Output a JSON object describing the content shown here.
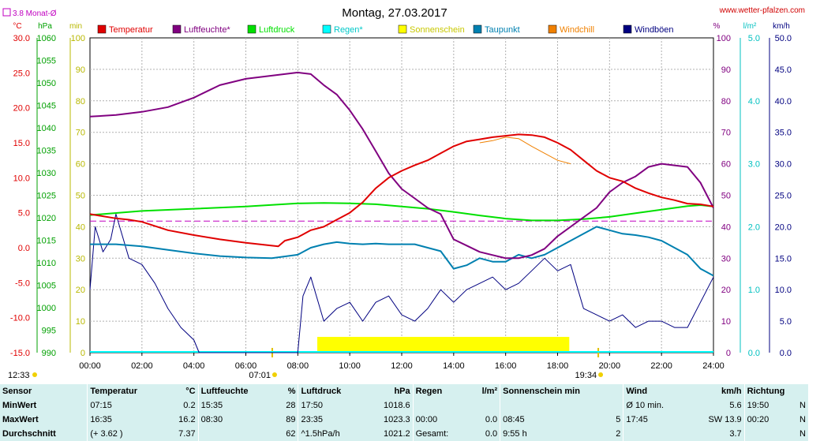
{
  "chart_data": {
    "type": "line",
    "title": "Montag, 27.03.2017",
    "source": "www.wetter-pfalzen.com",
    "monthly_avg_label": "3.8 Monat-Ø",
    "monthly_avg_value": 3.8,
    "axes": {
      "temp": {
        "unit": "°C",
        "min": -15,
        "max": 30,
        "ticks": [
          "30.0",
          "25.0",
          "20.0",
          "15.0",
          "10.0",
          "5.0",
          "0.0",
          "-5.0",
          "-10.0",
          "-15.0"
        ],
        "color": "#e00000"
      },
      "pressure": {
        "unit": "hPa",
        "min": 990,
        "max": 1060,
        "ticks": [
          "1060",
          "1055",
          "1050",
          "1045",
          "1040",
          "1035",
          "1030",
          "1025",
          "1020",
          "1015",
          "1010",
          "1005",
          "1000",
          "995",
          "990"
        ],
        "color": "#00a000"
      },
      "minutes": {
        "unit": "min",
        "min": 0,
        "max": 100,
        "ticks": [
          "100",
          "90",
          "80",
          "70",
          "60",
          "50",
          "40",
          "30",
          "20",
          "10",
          "0"
        ],
        "color": "#b8b800"
      },
      "humidity": {
        "unit": "%",
        "min": 0,
        "max": 100,
        "ticks": [
          "100",
          "90",
          "80",
          "70",
          "60",
          "50",
          "40",
          "30",
          "20",
          "10",
          "0"
        ],
        "color": "#800080"
      },
      "rain": {
        "unit": "l/m²",
        "min": 0,
        "max": 5,
        "ticks": [
          "5.0",
          "4.0",
          "3.0",
          "2.0",
          "1.0",
          "0.0"
        ],
        "color": "#00c0c0"
      },
      "wind": {
        "unit": "km/h",
        "min": 0,
        "max": 50,
        "ticks": [
          "50.0",
          "45.0",
          "40.0",
          "35.0",
          "30.0",
          "25.0",
          "20.0",
          "15.0",
          "10.0",
          "5.0",
          "0.0"
        ],
        "color": "#000080"
      }
    },
    "x_ticks": [
      "00:00",
      "02:00",
      "04:00",
      "06:00",
      "08:00",
      "10:00",
      "12:00",
      "14:00",
      "16:00",
      "18:00",
      "20:00",
      "22:00",
      "24:00"
    ],
    "sunrise": "07:01",
    "sunset": "19:34",
    "moon": "12:33",
    "legend": [
      {
        "name": "Temperatur",
        "color": "#e00000"
      },
      {
        "name": "Luftfeuchte*",
        "color": "#800080"
      },
      {
        "name": "Luftdruck",
        "color": "#00e000"
      },
      {
        "name": "Regen*",
        "color": "#00ffff"
      },
      {
        "name": "Sonnenschein",
        "color": "#ffff00"
      },
      {
        "name": "Taupunkt",
        "color": "#0080b0"
      },
      {
        "name": "Windchill",
        "color": "#f08000"
      },
      {
        "name": "Windböen",
        "color": "#000080"
      }
    ],
    "series": {
      "temperatur": {
        "x": [
          0,
          0.5,
          1,
          1.5,
          2,
          3,
          4,
          5,
          6,
          7.25,
          7.5,
          8,
          8.5,
          9,
          9.5,
          10,
          10.5,
          11,
          11.5,
          12,
          12.5,
          13,
          13.5,
          14,
          14.5,
          15,
          15.5,
          16,
          16.5,
          17,
          17.5,
          18,
          18.5,
          19,
          19.5,
          20,
          20.5,
          21,
          21.5,
          22,
          22.5,
          23,
          23.5,
          24
        ],
        "y": [
          4.8,
          4.5,
          4.2,
          4.0,
          3.7,
          2.5,
          1.8,
          1.2,
          0.7,
          0.2,
          1,
          1.5,
          2.5,
          3,
          4,
          5,
          6.5,
          8.5,
          10,
          11,
          11.8,
          12.5,
          13.5,
          14.5,
          15.2,
          15.5,
          15.8,
          16,
          16.2,
          16.1,
          15.8,
          15,
          14,
          12.5,
          11,
          10,
          9.5,
          8.5,
          7.8,
          7.2,
          6.8,
          6.3,
          6.2,
          5.9
        ]
      },
      "luftfeuchte": {
        "x": [
          0,
          1,
          2,
          3,
          3.5,
          4,
          4.5,
          5,
          6,
          7,
          8,
          8.5,
          9,
          9.5,
          10,
          10.5,
          11,
          11.5,
          12,
          12.5,
          13,
          13.5,
          14,
          14.5,
          15,
          15.5,
          16,
          16.5,
          17,
          17.5,
          18,
          18.5,
          19,
          19.5,
          20,
          20.5,
          21,
          21.5,
          22,
          22.5,
          23,
          23.5,
          24
        ],
        "y": [
          75,
          75.5,
          76.5,
          78,
          79.5,
          81,
          83,
          85,
          87,
          88,
          89,
          88.5,
          85,
          82,
          77,
          71,
          64,
          57,
          52,
          49,
          46,
          44,
          36,
          34,
          32,
          31,
          30,
          30,
          31,
          33,
          37,
          40,
          43,
          46,
          51,
          54,
          56,
          59,
          60,
          59.5,
          59,
          54,
          46
        ]
      },
      "luftdruck": {
        "x": [
          0,
          2,
          4,
          6,
          8,
          9,
          10,
          11,
          12,
          13,
          14,
          15,
          16,
          17,
          18,
          19,
          20,
          21,
          22,
          23,
          23.5,
          24
        ],
        "y": [
          1020.6,
          1021.5,
          1022,
          1022.5,
          1023.2,
          1023.3,
          1023.2,
          1023,
          1022.5,
          1022,
          1021.3,
          1020.5,
          1019.8,
          1019.4,
          1019.4,
          1019.7,
          1020.2,
          1021,
          1021.8,
          1022.6,
          1022.8,
          1022.5
        ]
      },
      "taupunkt": {
        "x": [
          0,
          1,
          2,
          3,
          4,
          5,
          6,
          7,
          8,
          8.5,
          9,
          9.5,
          10,
          10.5,
          11,
          11.5,
          12,
          12.5,
          13,
          13.5,
          14,
          14.5,
          15,
          15.5,
          16,
          16.5,
          17,
          17.5,
          18,
          18.5,
          19,
          19.5,
          20,
          20.5,
          21,
          21.5,
          22,
          22.5,
          23,
          23.5,
          24
        ],
        "y": [
          0.5,
          0.5,
          0.2,
          -0.3,
          -0.8,
          -1.2,
          -1.4,
          -1.5,
          -1,
          0,
          0.5,
          0.8,
          0.6,
          0.5,
          0.6,
          0.5,
          0.5,
          0.5,
          0,
          -0.5,
          -3,
          -2.5,
          -1.5,
          -2,
          -2,
          -1,
          -1.5,
          -1,
          0,
          1,
          2,
          3,
          2.5,
          2,
          1.8,
          1.5,
          1,
          0,
          -1,
          -3,
          -4
        ]
      },
      "windchill": {
        "x": [
          15,
          15.5,
          16,
          16.5,
          17,
          17.5,
          18,
          18.5
        ],
        "y": [
          15,
          15.3,
          15.8,
          15.6,
          14.5,
          13.5,
          12.5,
          12
        ]
      },
      "windboeen": {
        "x": [
          0,
          0.2,
          0.5,
          0.8,
          1,
          1.5,
          2,
          2.5,
          3,
          3.5,
          4,
          4.2,
          4.5,
          5,
          6,
          7,
          7.5,
          8,
          8.2,
          8.5,
          9,
          9.5,
          10,
          10.5,
          11,
          11.5,
          12,
          12.5,
          13,
          13.5,
          14,
          14.5,
          15,
          15.5,
          16,
          16.5,
          17,
          17.5,
          18,
          18.5,
          19,
          19.5,
          20,
          20.5,
          21,
          21.5,
          22,
          22.5,
          23,
          23.5,
          24
        ],
        "y": [
          10,
          20,
          16,
          18,
          22,
          15,
          14,
          11,
          7,
          4,
          2,
          0,
          0,
          0,
          0,
          0,
          0,
          0,
          9,
          12,
          5,
          7,
          8,
          5,
          8,
          9,
          6,
          5,
          7,
          10,
          8,
          10,
          11,
          12,
          10,
          11,
          13,
          15,
          13,
          14,
          7,
          6,
          5,
          6,
          4,
          5,
          5,
          4,
          4,
          8,
          12
        ]
      },
      "sonnenschein_hours": {
        "start": 8.75,
        "end": 18.45,
        "level": 5
      }
    }
  },
  "stats": {
    "headers": [
      "Sensor",
      "Temperatur",
      "°C",
      "Luftfeuchte",
      "%",
      "Luftdruck",
      "hPa",
      "Regen",
      "l/m²",
      "Sonnenschein min",
      "Wind",
      "km/h",
      "Richtung"
    ],
    "rows": [
      {
        "label": "MinWert",
        "temp_time": "07:15",
        "temp_val": "0.2",
        "hum_time": "15:35",
        "hum_val": "28",
        "pres_time": "17:50",
        "pres_val": "1018.6",
        "rain_time": "",
        "rain_val": "",
        "sun_time": "",
        "sun_val": "",
        "wind_time": "Ø 10 min.",
        "wind_val": "5.6",
        "dir_time": "19:50",
        "dir_val": "N"
      },
      {
        "label": "MaxWert",
        "temp_time": "16:35",
        "temp_val": "16.2",
        "hum_time": "08:30",
        "hum_val": "89",
        "pres_time": "23:35",
        "pres_val": "1023.3",
        "rain_time": "00:00",
        "rain_val": "0.0",
        "sun_time": "08:45",
        "sun_val": "5",
        "wind_time": "17:45",
        "wind_val": "SW 13.9",
        "dir_time": "00:20",
        "dir_val": "N"
      },
      {
        "label": "Durchschnitt",
        "temp_time": "(+ 3.62 )",
        "temp_val": "7.37",
        "hum_time": "",
        "hum_val": "62",
        "pres_time": "^1.5hPa/h",
        "pres_val": "1021.2",
        "rain_time": "Gesamt:",
        "rain_val": "0.0",
        "sun_time": "9:55 h",
        "sun_val": "2",
        "wind_time": "",
        "wind_val": "3.7",
        "dir_time": "",
        "dir_val": "N"
      }
    ]
  }
}
